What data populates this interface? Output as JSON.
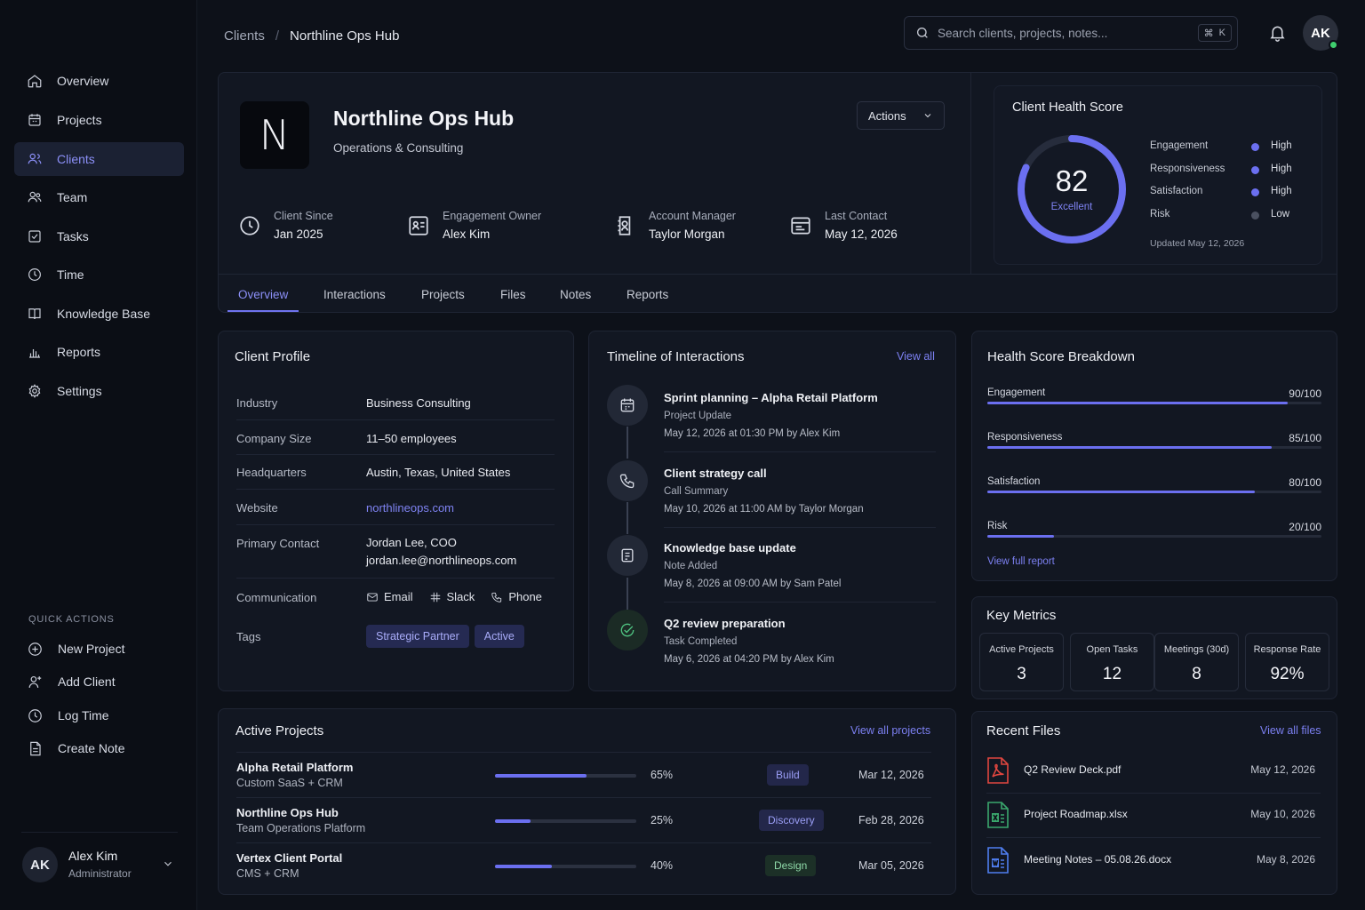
{
  "breadcrumb": {
    "parent": "Clients",
    "separator": "/",
    "current": "Northline Ops Hub"
  },
  "search": {
    "placeholder": "Search clients, projects, notes...",
    "shortcut_mod": "⌘",
    "shortcut_key": "K"
  },
  "user_initials": "AK",
  "sidebar": {
    "items": [
      {
        "label": "Overview",
        "icon": "home-icon"
      },
      {
        "label": "Projects",
        "icon": "calendar-icon"
      },
      {
        "label": "Clients",
        "icon": "users-icon",
        "active": true
      },
      {
        "label": "Team",
        "icon": "team-icon"
      },
      {
        "label": "Tasks",
        "icon": "checkbox-icon"
      },
      {
        "label": "Time",
        "icon": "clock-icon"
      },
      {
        "label": "Knowledge Base",
        "icon": "book-icon"
      },
      {
        "label": "Reports",
        "icon": "bar-chart-icon"
      },
      {
        "label": "Settings",
        "icon": "gear-icon"
      }
    ],
    "quick_actions_title": "QUICK ACTIONS",
    "quick_actions": [
      {
        "label": "New Project",
        "icon": "plus-circle-icon"
      },
      {
        "label": "Add Client",
        "icon": "user-plus-icon"
      },
      {
        "label": "Log Time",
        "icon": "clock-icon"
      },
      {
        "label": "Create Note",
        "icon": "note-icon"
      }
    ],
    "user": {
      "initials": "AK",
      "name": "Alex Kim",
      "role": "Administrator"
    }
  },
  "client": {
    "logo_letter": "N",
    "name": "Northline Ops Hub",
    "subtitle": "Operations & Consulting",
    "actions_label": "Actions",
    "meta": [
      {
        "label": "Client Since",
        "value": "Jan 2025",
        "icon": "clock-icon"
      },
      {
        "label": "Engagement Owner",
        "value": "Alex Kim",
        "icon": "id-card-icon"
      },
      {
        "label": "Account Manager",
        "value": "Taylor Morgan",
        "icon": "contact-icon"
      },
      {
        "label": "Last Contact",
        "value": "May 12, 2026",
        "icon": "message-icon"
      }
    ]
  },
  "tabs": [
    "Overview",
    "Interactions",
    "Projects",
    "Files",
    "Notes",
    "Reports"
  ],
  "health": {
    "title": "Client Health Score",
    "score": "82",
    "score_value": 82,
    "score_label": "Excellent",
    "accent": "#6b6ff0",
    "rows": [
      {
        "name": "Engagement",
        "level": "High"
      },
      {
        "name": "Responsiveness",
        "level": "High"
      },
      {
        "name": "Satisfaction",
        "level": "High"
      },
      {
        "name": "Risk",
        "level": "Low"
      }
    ],
    "updated": "Updated May 12, 2026"
  },
  "profile": {
    "title": "Client Profile",
    "rows": [
      {
        "key": "Industry",
        "value": "Business Consulting"
      },
      {
        "key": "Company Size",
        "value": "11–50 employees"
      },
      {
        "key": "Headquarters",
        "value": "Austin, Texas, United States"
      },
      {
        "key": "Website",
        "value": "northlineops.com"
      },
      {
        "key": "Primary Contact",
        "value": "Jordan Lee, COO",
        "value2": "jordan.lee@northlineops.com"
      }
    ],
    "communication_label": "Communication",
    "communication": [
      "Email",
      "Slack",
      "Phone"
    ],
    "tags_label": "Tags",
    "tags": [
      "Strategic Partner",
      "Active"
    ]
  },
  "timeline": {
    "title": "Timeline of Interactions",
    "view_all": "View all",
    "items": [
      {
        "title": "Sprint planning – Alpha Retail Platform",
        "type": "Project Update",
        "date": "May 12, 2026 at 01:30 PM by Alex Kim",
        "icon": "calendar-icon"
      },
      {
        "title": "Client strategy call",
        "type": "Call Summary",
        "date": "May 10, 2026 at 11:00 AM by Taylor Morgan",
        "icon": "phone-icon"
      },
      {
        "title": "Knowledge base update",
        "type": "Note Added",
        "date": "May 8, 2026 at 09:00 AM by Sam Patel",
        "icon": "note-icon"
      },
      {
        "title": "Q2 review preparation",
        "type": "Task Completed",
        "date": "May 6, 2026 at 04:20 PM by Alex Kim",
        "icon": "check-circle-icon"
      }
    ]
  },
  "breakdown": {
    "title": "Health Score Breakdown",
    "rows": [
      {
        "name": "Engagement",
        "score": "90/100",
        "value": 0.9
      },
      {
        "name": "Responsiveness",
        "score": "85/100",
        "value": 0.85
      },
      {
        "name": "Satisfaction",
        "score": "80/100",
        "value": 0.8
      },
      {
        "name": "Risk",
        "score": "20/100",
        "value": 0.2
      }
    ],
    "view_report": "View full report"
  },
  "metrics": {
    "title": "Key Metrics",
    "items": [
      {
        "label": "Active Projects",
        "value": "3"
      },
      {
        "label": "Open Tasks",
        "value": "12"
      },
      {
        "label": "Meetings (30d)",
        "value": "8"
      },
      {
        "label": "Response Rate",
        "value": "92%"
      }
    ]
  },
  "projects": {
    "title": "Active Projects",
    "view_all": "View all projects",
    "rows": [
      {
        "name": "Alpha Retail Platform",
        "sub": "Custom SaaS + CRM",
        "progress": "65%",
        "progress_value": 0.65,
        "stage": "Build",
        "date": "Mar 12, 2026"
      },
      {
        "name": "Northline Ops Hub",
        "sub": "Team Operations Platform",
        "progress": "25%",
        "progress_value": 0.25,
        "stage": "Discovery",
        "date": "Feb 28, 2026"
      },
      {
        "name": "Vertex Client Portal",
        "sub": "CMS + CRM",
        "progress": "40%",
        "progress_value": 0.4,
        "stage": "Design",
        "date": "Mar 05, 2026"
      }
    ]
  },
  "files": {
    "title": "Recent Files",
    "view_all": "View all files",
    "rows": [
      {
        "name": "Q2 Review Deck.pdf",
        "date": "May 12, 2026",
        "icon": "pdf-file-icon",
        "color": "#e0463f"
      },
      {
        "name": "Project Roadmap.xlsx",
        "date": "May 10, 2026",
        "icon": "excel-file-icon",
        "color": "#3aa76d"
      },
      {
        "name": "Meeting Notes – 05.08.26.docx",
        "date": "May 8, 2026",
        "icon": "word-file-icon",
        "color": "#4f7ef0"
      }
    ]
  }
}
